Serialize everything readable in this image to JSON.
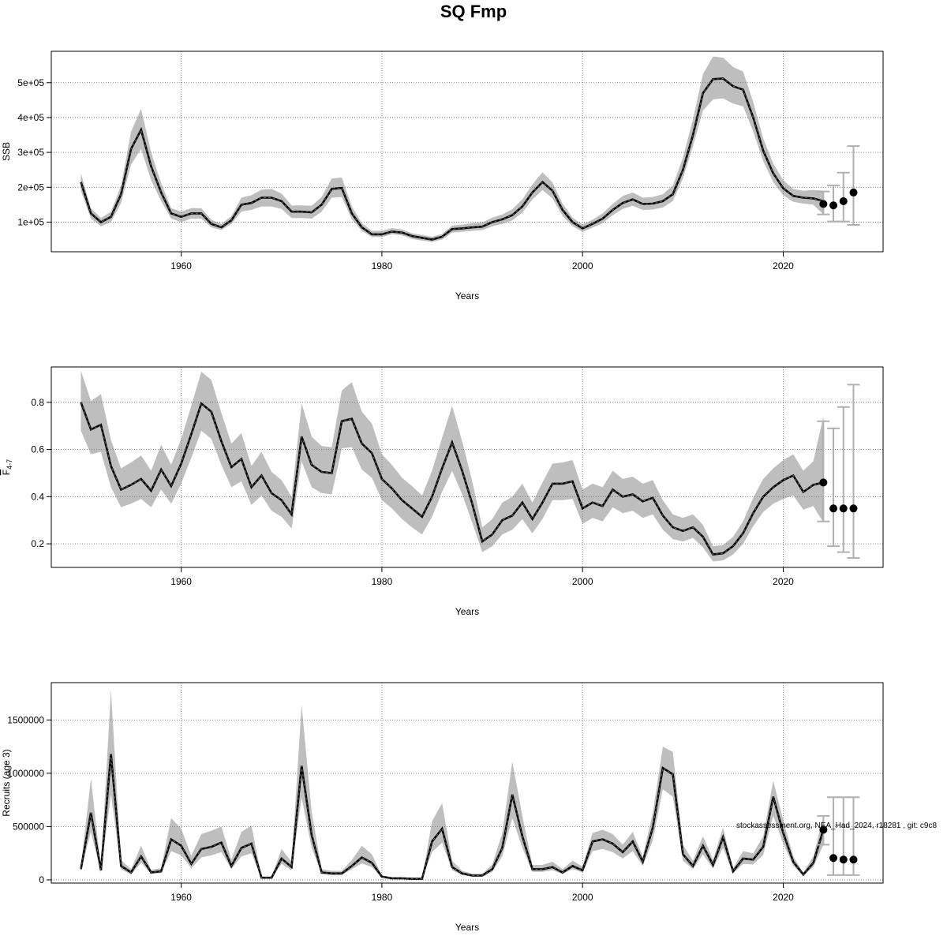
{
  "title": "SQ Fmp",
  "footer": "stockassessment.org, NEA_Had_2024, r18281 , git: c9c8",
  "colors": {
    "band": "#bebebe",
    "line": "#000000",
    "dash": "#666666",
    "grid": "#666666",
    "whisker": "#b0b0b0",
    "point": "#000000"
  },
  "chart_data": [
    {
      "type": "line",
      "title": "",
      "xlabel": "Years",
      "ylabel": "SSB",
      "xlim": [
        1950,
        2027
      ],
      "ylim": [
        15000,
        590000
      ],
      "xticks": [
        1960,
        1980,
        2000,
        2020
      ],
      "xtick_labels": [
        "1960",
        "1980",
        "2000",
        "2020"
      ],
      "yticks": [
        100000,
        200000,
        300000,
        400000,
        500000
      ],
      "ytick_labels": [
        "1e+05",
        "2e+05",
        "3e+05",
        "4e+05",
        "5e+05"
      ],
      "grid": true,
      "years": [
        1950,
        1951,
        1952,
        1953,
        1954,
        1955,
        1956,
        1957,
        1958,
        1959,
        1960,
        1961,
        1962,
        1963,
        1964,
        1965,
        1966,
        1967,
        1968,
        1969,
        1970,
        1971,
        1972,
        1973,
        1974,
        1975,
        1976,
        1977,
        1978,
        1979,
        1980,
        1981,
        1982,
        1983,
        1984,
        1985,
        1986,
        1987,
        1988,
        1989,
        1990,
        1991,
        1992,
        1993,
        1994,
        1995,
        1996,
        1997,
        1998,
        1999,
        2000,
        2001,
        2002,
        2003,
        2004,
        2005,
        2006,
        2007,
        2008,
        2009,
        2010,
        2011,
        2012,
        2013,
        2014,
        2015,
        2016,
        2017,
        2018,
        2019,
        2020,
        2021,
        2022,
        2023,
        2024
      ],
      "estimate": [
        215000,
        125000,
        100000,
        115000,
        180000,
        310000,
        365000,
        260000,
        185000,
        125000,
        115000,
        125000,
        125000,
        95000,
        85000,
        105000,
        150000,
        155000,
        170000,
        170000,
        160000,
        130000,
        130000,
        128000,
        150000,
        195000,
        198000,
        125000,
        85000,
        65000,
        65000,
        73000,
        70000,
        60000,
        55000,
        50000,
        58000,
        80000,
        82000,
        85000,
        87000,
        100000,
        108000,
        120000,
        145000,
        185000,
        215000,
        190000,
        135000,
        100000,
        82000,
        95000,
        110000,
        135000,
        155000,
        165000,
        152000,
        153000,
        160000,
        180000,
        250000,
        350000,
        470000,
        510000,
        512000,
        490000,
        480000,
        400000,
        305000,
        240000,
        197000,
        175000,
        170000,
        168000,
        160000
      ],
      "lower": [
        190000,
        110000,
        88000,
        100000,
        155000,
        265000,
        310000,
        220000,
        160000,
        110000,
        100000,
        110000,
        110000,
        85000,
        77000,
        95000,
        130000,
        135000,
        145000,
        145000,
        138000,
        112000,
        112000,
        110000,
        130000,
        170000,
        172000,
        108000,
        75000,
        57000,
        57000,
        65000,
        62000,
        52000,
        47000,
        43000,
        50000,
        70000,
        72000,
        75000,
        77000,
        88000,
        95000,
        105000,
        127000,
        165000,
        192000,
        168000,
        118000,
        88000,
        72000,
        84000,
        97000,
        120000,
        138000,
        147000,
        135000,
        136000,
        142000,
        160000,
        225000,
        318000,
        420000,
        452000,
        455000,
        440000,
        432000,
        360000,
        275000,
        215000,
        177000,
        158000,
        153000,
        150000,
        122000
      ],
      "upper": [
        240000,
        140000,
        112000,
        130000,
        205000,
        360000,
        425000,
        300000,
        212000,
        140000,
        130000,
        140000,
        140000,
        107000,
        95000,
        117000,
        170000,
        177000,
        193000,
        195000,
        182000,
        148000,
        148000,
        147000,
        172000,
        225000,
        228000,
        145000,
        97000,
        75000,
        75000,
        83000,
        79000,
        68000,
        63000,
        58000,
        66000,
        90000,
        93000,
        97000,
        99000,
        113000,
        122000,
        137000,
        165000,
        208000,
        243000,
        214000,
        153000,
        113000,
        93000,
        107000,
        125000,
        152000,
        175000,
        185000,
        170000,
        172000,
        180000,
        205000,
        285000,
        395000,
        525000,
        575000,
        572000,
        545000,
        532000,
        445000,
        340000,
        268000,
        220000,
        195000,
        190000,
        192000,
        190000
      ],
      "projection": {
        "years": [
          2024,
          2025,
          2026,
          2027
        ],
        "median": [
          152000,
          148000,
          160000,
          185000
        ],
        "low": [
          122000,
          102000,
          102000,
          92000
        ],
        "high": [
          188000,
          205000,
          242000,
          318000
        ]
      }
    },
    {
      "type": "line",
      "title": "",
      "xlabel": "Years",
      "ylabel": "F̅4-7",
      "ylabel_main": "F",
      "ylabel_sub": "4-7",
      "xlim": [
        1950,
        2027
      ],
      "ylim": [
        0.1,
        0.95
      ],
      "xticks": [
        1960,
        1980,
        2000,
        2020
      ],
      "xtick_labels": [
        "1960",
        "1980",
        "2000",
        "2020"
      ],
      "yticks": [
        0.2,
        0.4,
        0.6,
        0.8
      ],
      "ytick_labels": [
        "0.2",
        "0.4",
        "0.6",
        "0.8"
      ],
      "grid": true,
      "years": [
        1950,
        1951,
        1952,
        1953,
        1954,
        1955,
        1956,
        1957,
        1958,
        1959,
        1960,
        1961,
        1962,
        1963,
        1964,
        1965,
        1966,
        1967,
        1968,
        1969,
        1970,
        1971,
        1972,
        1973,
        1974,
        1975,
        1976,
        1977,
        1978,
        1979,
        1980,
        1981,
        1982,
        1983,
        1984,
        1985,
        1986,
        1987,
        1988,
        1989,
        1990,
        1991,
        1992,
        1993,
        1994,
        1995,
        1996,
        1997,
        1998,
        1999,
        2000,
        2001,
        2002,
        2003,
        2004,
        2005,
        2006,
        2007,
        2008,
        2009,
        2010,
        2011,
        2012,
        2013,
        2014,
        2015,
        2016,
        2017,
        2018,
        2019,
        2020,
        2021,
        2022,
        2023,
        2024
      ],
      "estimate": [
        0.8,
        0.685,
        0.705,
        0.53,
        0.43,
        0.45,
        0.475,
        0.425,
        0.515,
        0.445,
        0.54,
        0.665,
        0.795,
        0.76,
        0.635,
        0.525,
        0.56,
        0.44,
        0.49,
        0.415,
        0.385,
        0.325,
        0.655,
        0.535,
        0.505,
        0.5,
        0.72,
        0.73,
        0.625,
        0.585,
        0.475,
        0.435,
        0.385,
        0.35,
        0.315,
        0.4,
        0.52,
        0.63,
        0.51,
        0.37,
        0.21,
        0.24,
        0.3,
        0.32,
        0.375,
        0.305,
        0.375,
        0.455,
        0.455,
        0.465,
        0.35,
        0.375,
        0.36,
        0.43,
        0.4,
        0.41,
        0.38,
        0.395,
        0.32,
        0.27,
        0.255,
        0.27,
        0.23,
        0.155,
        0.16,
        0.19,
        0.245,
        0.33,
        0.4,
        0.44,
        0.47,
        0.49,
        0.42,
        0.45,
        0.46
      ],
      "lower": [
        0.68,
        0.58,
        0.59,
        0.44,
        0.355,
        0.37,
        0.39,
        0.355,
        0.43,
        0.37,
        0.455,
        0.565,
        0.68,
        0.645,
        0.535,
        0.44,
        0.465,
        0.365,
        0.405,
        0.34,
        0.315,
        0.265,
        0.55,
        0.44,
        0.415,
        0.41,
        0.605,
        0.61,
        0.515,
        0.48,
        0.385,
        0.35,
        0.305,
        0.27,
        0.24,
        0.315,
        0.42,
        0.51,
        0.41,
        0.29,
        0.165,
        0.19,
        0.24,
        0.26,
        0.305,
        0.245,
        0.305,
        0.385,
        0.385,
        0.39,
        0.285,
        0.31,
        0.295,
        0.355,
        0.33,
        0.34,
        0.31,
        0.325,
        0.26,
        0.22,
        0.21,
        0.225,
        0.185,
        0.125,
        0.13,
        0.155,
        0.2,
        0.275,
        0.335,
        0.37,
        0.39,
        0.405,
        0.345,
        0.36,
        0.29
      ],
      "upper": [
        0.935,
        0.805,
        0.835,
        0.64,
        0.52,
        0.545,
        0.575,
        0.51,
        0.62,
        0.535,
        0.645,
        0.785,
        0.93,
        0.895,
        0.755,
        0.625,
        0.67,
        0.53,
        0.59,
        0.505,
        0.47,
        0.4,
        0.795,
        0.655,
        0.615,
        0.61,
        0.85,
        0.885,
        0.76,
        0.71,
        0.58,
        0.535,
        0.48,
        0.445,
        0.405,
        0.51,
        0.65,
        0.785,
        0.635,
        0.465,
        0.27,
        0.305,
        0.375,
        0.4,
        0.455,
        0.375,
        0.46,
        0.54,
        0.545,
        0.555,
        0.43,
        0.455,
        0.44,
        0.51,
        0.475,
        0.485,
        0.455,
        0.47,
        0.385,
        0.325,
        0.31,
        0.325,
        0.28,
        0.19,
        0.195,
        0.23,
        0.295,
        0.395,
        0.475,
        0.52,
        0.555,
        0.58,
        0.51,
        0.55,
        0.74
      ],
      "projection": {
        "years": [
          2024,
          2025,
          2026,
          2027
        ],
        "median": [
          0.46,
          0.35,
          0.35,
          0.35
        ],
        "low": [
          0.295,
          0.19,
          0.165,
          0.14
        ],
        "high": [
          0.72,
          0.69,
          0.78,
          0.875
        ]
      }
    },
    {
      "type": "line",
      "title": "",
      "xlabel": "Years",
      "ylabel": "Recruits (age 3)",
      "xlim": [
        1950,
        2027
      ],
      "ylim": [
        -30000,
        1850000
      ],
      "xticks": [
        1960,
        1980,
        2000,
        2020
      ],
      "xtick_labels": [
        "1960",
        "1980",
        "2000",
        "2020"
      ],
      "yticks": [
        0,
        500000,
        1000000,
        1500000
      ],
      "ytick_labels": [
        "0",
        "500000",
        "1000000",
        "1500000"
      ],
      "grid": true,
      "years": [
        1950,
        1951,
        1952,
        1953,
        1954,
        1955,
        1956,
        1957,
        1958,
        1959,
        1960,
        1961,
        1962,
        1963,
        1964,
        1965,
        1966,
        1967,
        1968,
        1969,
        1970,
        1971,
        1972,
        1973,
        1974,
        1975,
        1976,
        1977,
        1978,
        1979,
        1980,
        1981,
        1982,
        1983,
        1984,
        1985,
        1986,
        1987,
        1988,
        1989,
        1990,
        1991,
        1992,
        1993,
        1994,
        1995,
        1996,
        1997,
        1998,
        1999,
        2000,
        2001,
        2002,
        2003,
        2004,
        2005,
        2006,
        2007,
        2008,
        2009,
        2010,
        2011,
        2012,
        2013,
        2014,
        2015,
        2016,
        2017,
        2018,
        2019,
        2020,
        2021,
        2022,
        2023,
        2024
      ],
      "estimate": [
        100000,
        630000,
        90000,
        1180000,
        130000,
        70000,
        220000,
        70000,
        80000,
        380000,
        320000,
        150000,
        290000,
        310000,
        350000,
        130000,
        300000,
        340000,
        20000,
        20000,
        200000,
        120000,
        1070000,
        420000,
        70000,
        60000,
        60000,
        130000,
        210000,
        160000,
        30000,
        15000,
        15000,
        10000,
        10000,
        360000,
        480000,
        120000,
        60000,
        40000,
        40000,
        100000,
        300000,
        800000,
        410000,
        100000,
        100000,
        120000,
        70000,
        130000,
        90000,
        360000,
        380000,
        340000,
        260000,
        360000,
        170000,
        490000,
        1050000,
        990000,
        240000,
        130000,
        320000,
        140000,
        400000,
        80000,
        200000,
        190000,
        310000,
        780000,
        440000,
        170000,
        50000,
        160000,
        470000
      ],
      "lower": [
        80000,
        450000,
        70000,
        800000,
        100000,
        50000,
        160000,
        55000,
        65000,
        270000,
        230000,
        110000,
        210000,
        230000,
        260000,
        100000,
        220000,
        250000,
        15000,
        15000,
        150000,
        90000,
        770000,
        300000,
        55000,
        45000,
        45000,
        100000,
        155000,
        120000,
        22000,
        10000,
        10000,
        7000,
        7000,
        260000,
        350000,
        90000,
        45000,
        30000,
        30000,
        75000,
        220000,
        580000,
        300000,
        75000,
        75000,
        90000,
        55000,
        100000,
        70000,
        270000,
        290000,
        260000,
        200000,
        270000,
        130000,
        370000,
        850000,
        780000,
        180000,
        100000,
        240000,
        105000,
        300000,
        60000,
        150000,
        145000,
        235000,
        600000,
        340000,
        130000,
        38000,
        120000,
        330000
      ],
      "upper": [
        130000,
        950000,
        115000,
        1780000,
        185000,
        100000,
        320000,
        95000,
        110000,
        580000,
        480000,
        225000,
        430000,
        460000,
        500000,
        190000,
        450000,
        510000,
        28000,
        28000,
        290000,
        170000,
        1640000,
        640000,
        100000,
        85000,
        85000,
        185000,
        320000,
        240000,
        42000,
        22000,
        22000,
        15000,
        15000,
        550000,
        720000,
        180000,
        85000,
        58000,
        58000,
        145000,
        440000,
        1110000,
        600000,
        140000,
        140000,
        170000,
        100000,
        180000,
        125000,
        440000,
        470000,
        430000,
        330000,
        450000,
        220000,
        630000,
        1250000,
        1200000,
        330000,
        180000,
        410000,
        190000,
        490000,
        110000,
        270000,
        250000,
        410000,
        930000,
        560000,
        220000,
        68000,
        220000,
        600000
      ],
      "projection": {
        "years": [
          2024,
          2025,
          2026,
          2027
        ],
        "median": [
          470000,
          205000,
          190000,
          190000
        ],
        "low": [
          330000,
          45000,
          45000,
          45000
        ],
        "high": [
          600000,
          775000,
          775000,
          775000
        ]
      }
    }
  ]
}
